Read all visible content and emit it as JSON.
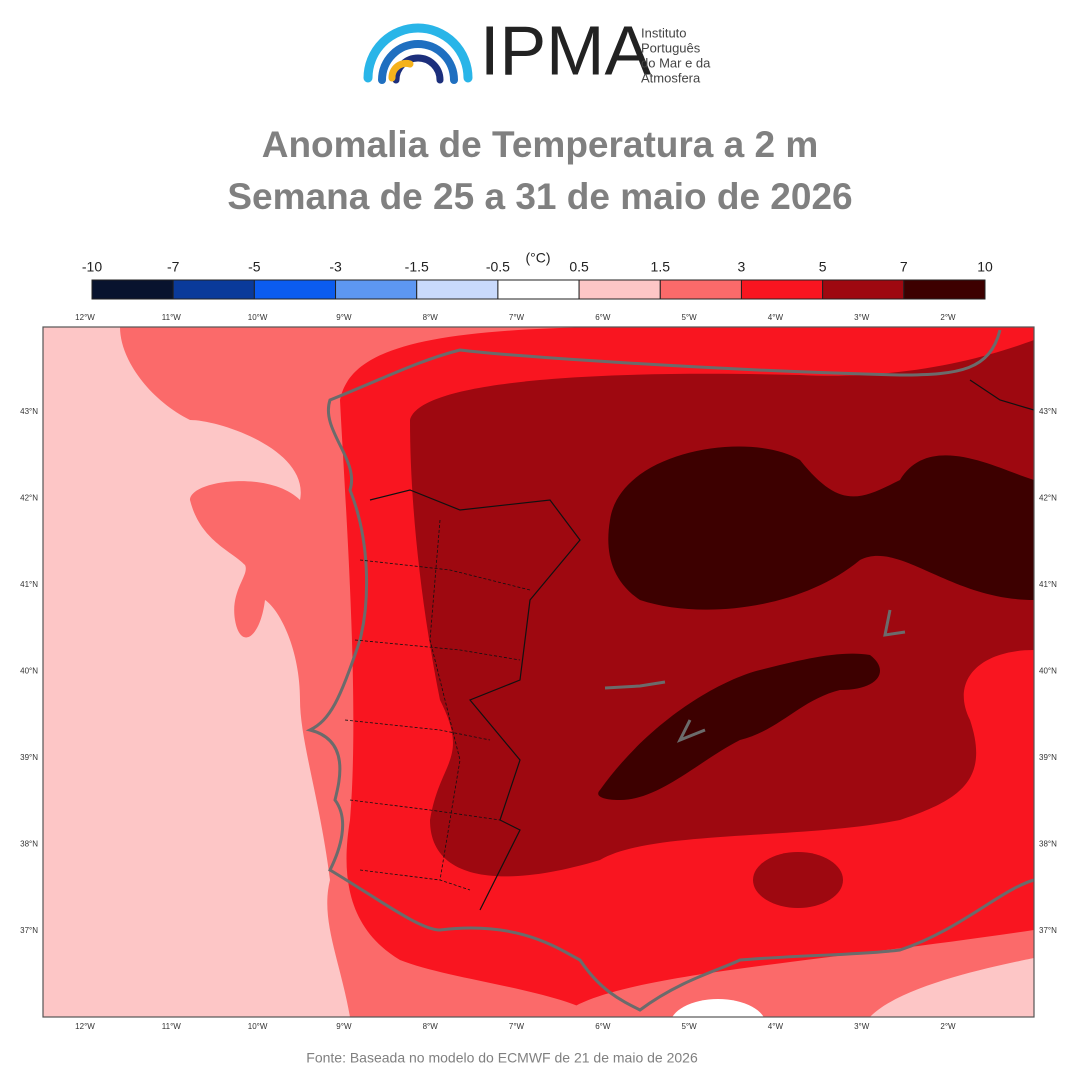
{
  "logo": {
    "name": "IPMA",
    "subtitle": [
      "Instituto",
      "Português",
      "do Mar e da",
      "Atmosfera"
    ]
  },
  "title": [
    "Anomalia de Temperatura a 2 m",
    "Semana de 25 a 31 de maio de 2026"
  ],
  "colorbar": {
    "unit": "(°C)",
    "ticks": [
      -10,
      -7,
      -5,
      -3,
      -1.5,
      -0.5,
      0.5,
      1.5,
      3,
      5,
      7,
      10
    ],
    "colors": [
      "#08132e",
      "#0a3a9a",
      "#0b5cf0",
      "#5d97f2",
      "#c9dafc",
      "#ffffff",
      "#fdc6c6",
      "#fb6a6a",
      "#f91520",
      "#9e0810",
      "#3d0000"
    ]
  },
  "map": {
    "lon_labels": [
      "12°W",
      "11°W",
      "10°W",
      "9°W",
      "8°W",
      "7°W",
      "6°W",
      "5°W",
      "4°W",
      "3°W",
      "2°W"
    ],
    "lat_labels": [
      "43°N",
      "42°N",
      "41°N",
      "40°N",
      "39°N",
      "38°N",
      "37°N"
    ]
  },
  "source": "Fonte: Baseada no modelo do ECMWF de 21 de maio de 2026"
}
